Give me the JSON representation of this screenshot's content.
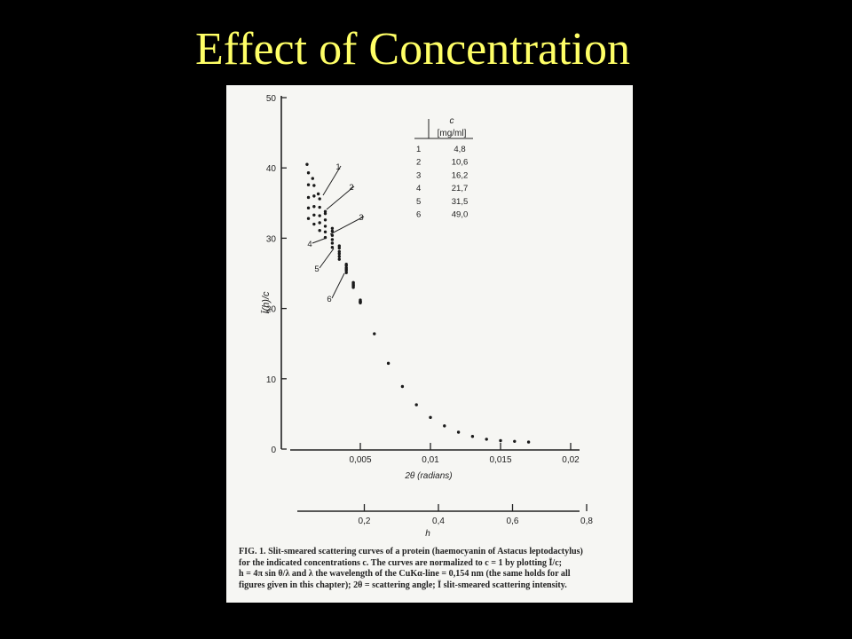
{
  "slide": {
    "title": "Effect of Concentration"
  },
  "chart_data": {
    "type": "scatter",
    "ylabel": "Ī(h)/c",
    "xlabel": "2θ (radians)",
    "x2label": "h",
    "xlim": [
      0,
      0.02
    ],
    "ylim": [
      0,
      50
    ],
    "x_ticks": [
      "0,005",
      "0,01",
      "0,015",
      "0,02"
    ],
    "x_tick_values": [
      0.005,
      0.01,
      0.015,
      0.02
    ],
    "x2_ticks": [
      "0,2",
      "0,4",
      "0,6",
      "0,8"
    ],
    "x2_tick_values": [
      0.2,
      0.4,
      0.6,
      0.8
    ],
    "y_ticks": [
      "0",
      "10",
      "20",
      "30",
      "40",
      "50"
    ],
    "y_tick_values": [
      0,
      10,
      20,
      30,
      40,
      50
    ],
    "legend_table": {
      "header_top": "c",
      "header_unit": "[mg/ml]",
      "rows": [
        {
          "curve": "1",
          "c": "4,8"
        },
        {
          "curve": "2",
          "c": "10,6"
        },
        {
          "curve": "3",
          "c": "16,2"
        },
        {
          "curve": "4",
          "c": "21,7"
        },
        {
          "curve": "5",
          "c": "31,5"
        },
        {
          "curve": "6",
          "c": "49,0"
        }
      ]
    },
    "series": [
      {
        "name": "1",
        "x": [
          0.0012,
          0.0016,
          0.002,
          0.0025,
          0.003,
          0.0035,
          0.004,
          0.0045,
          0.005,
          0.006,
          0.007,
          0.008,
          0.009,
          0.01,
          0.011,
          0.012,
          0.013,
          0.014,
          0.015,
          0.016,
          0.017
        ],
        "y": [
          40.5,
          38.5,
          36.3,
          33.8,
          31.4,
          28.9,
          26.3,
          23.7,
          21.2,
          16.4,
          12.2,
          8.9,
          6.3,
          4.5,
          3.3,
          2.4,
          1.8,
          1.4,
          1.2,
          1.1,
          1.0
        ]
      },
      {
        "name": "2",
        "x": [
          0.0013,
          0.0017,
          0.0021,
          0.0025,
          0.003,
          0.0035,
          0.004,
          0.0045,
          0.005
        ],
        "y": [
          39.3,
          37.5,
          35.6,
          33.5,
          31.0,
          28.6,
          26.1,
          23.6,
          21.0
        ]
      },
      {
        "name": "3",
        "x": [
          0.0013,
          0.0017,
          0.0021,
          0.0025,
          0.003,
          0.0035,
          0.004,
          0.0045,
          0.005
        ],
        "y": [
          37.6,
          36.0,
          34.4,
          32.6,
          30.4,
          28.1,
          25.8,
          23.4,
          21.0
        ]
      },
      {
        "name": "4",
        "x": [
          0.0013,
          0.0017,
          0.0021,
          0.0025,
          0.003,
          0.0035,
          0.004,
          0.0045,
          0.005
        ],
        "y": [
          35.8,
          34.5,
          33.2,
          31.7,
          29.8,
          27.8,
          25.6,
          23.3,
          20.9
        ]
      },
      {
        "name": "5",
        "x": [
          0.0013,
          0.0017,
          0.0021,
          0.0025,
          0.003,
          0.0035,
          0.004,
          0.0045,
          0.005
        ],
        "y": [
          34.3,
          33.3,
          32.2,
          30.9,
          29.3,
          27.4,
          25.4,
          23.2,
          20.9
        ]
      },
      {
        "name": "6",
        "x": [
          0.0013,
          0.0017,
          0.0021,
          0.0025,
          0.003,
          0.0035,
          0.004,
          0.0045,
          0.005
        ],
        "y": [
          32.8,
          32.0,
          31.1,
          30.1,
          28.7,
          27.0,
          25.1,
          23.0,
          20.8
        ]
      }
    ],
    "caption": [
      "FIG. 1. Slit-smeared scattering curves of a protein (haemocyanin of Astacus leptodactylus)",
      "for the indicated concentrations c. The curves are normalized to c = 1 by plotting Ī/c;",
      "h = 4π sin θ/λ and λ the wavelength of the CuKα-line = 0,154 nm (the same holds for all",
      "figures given in this chapter); 2θ = scattering angle; Ī slit-smeared scattering intensity."
    ]
  }
}
